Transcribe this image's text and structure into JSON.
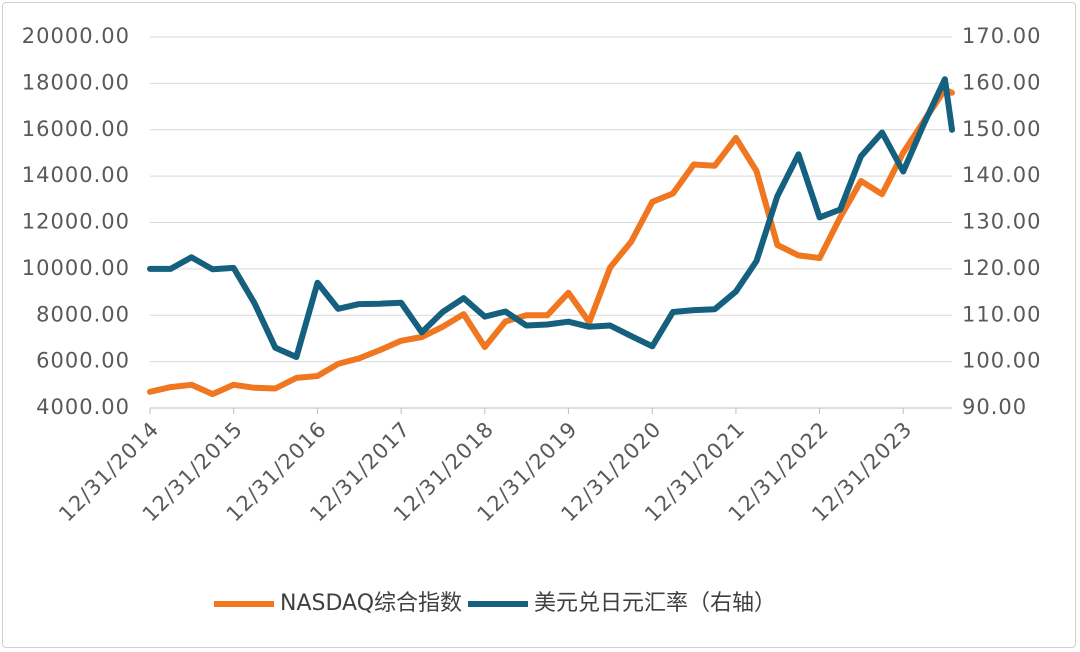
{
  "chart_data": {
    "type": "line",
    "x": [
      "12/31/2014",
      "3/31/2015",
      "6/30/2015",
      "9/30/2015",
      "12/31/2015",
      "3/31/2016",
      "6/30/2016",
      "9/30/2016",
      "12/31/2016",
      "3/31/2017",
      "6/30/2017",
      "9/30/2017",
      "12/31/2017",
      "3/31/2018",
      "6/30/2018",
      "9/30/2018",
      "12/31/2018",
      "3/31/2019",
      "6/30/2019",
      "9/30/2019",
      "12/31/2019",
      "3/31/2020",
      "6/30/2020",
      "9/30/2020",
      "12/31/2020",
      "3/31/2021",
      "6/30/2021",
      "9/30/2021",
      "12/31/2021",
      "3/31/2022",
      "6/30/2022",
      "9/30/2022",
      "12/31/2022",
      "3/31/2023",
      "6/30/2023",
      "9/30/2023",
      "12/31/2023",
      "3/31/2024",
      "6/30/2024",
      "7/31/2024"
    ],
    "series": [
      {
        "name": "NASDAQ综合指数",
        "color": "#f07620",
        "values": [
          4700,
          4900,
          5000,
          4600,
          5000,
          4870,
          4840,
          5300,
          5380,
          5900,
          6140,
          6500,
          6900,
          7060,
          7500,
          8050,
          6630,
          7730,
          8000,
          8000,
          8970,
          7700,
          10060,
          11170,
          12890,
          13250,
          14500,
          14450,
          15650,
          14220,
          11030,
          10580,
          10470,
          12220,
          13790,
          13220,
          15010,
          16380,
          17730,
          17600
        ]
      },
      {
        "name": "美元兑日元汇率（右轴）",
        "color": "#14607e",
        "axis": "y2",
        "values": [
          120,
          120,
          122.5,
          119.9,
          120.2,
          112.6,
          103,
          101,
          117,
          111.4,
          112.4,
          112.5,
          112.7,
          106.3,
          110.7,
          113.7,
          109.7,
          110.8,
          107.8,
          108,
          108.6,
          107.5,
          107.8,
          105.5,
          103.3,
          110.7,
          111.1,
          111.3,
          115.1,
          121.7,
          135.7,
          144.7,
          131.1,
          132.8,
          144.3,
          149.4,
          141,
          151.3,
          160.9,
          150
        ]
      }
    ],
    "xlim": [
      "12/31/2014",
      "7/31/2024"
    ],
    "xticks": [
      "12/31/2014",
      "12/31/2015",
      "12/31/2016",
      "12/31/2017",
      "12/31/2018",
      "12/31/2019",
      "12/31/2020",
      "12/31/2021",
      "12/31/2022",
      "12/31/2023"
    ],
    "ylim": [
      4000,
      20000
    ],
    "yticks": [
      {
        "value": 4000,
        "label": "4000.00"
      },
      {
        "value": 6000,
        "label": "6000.00"
      },
      {
        "value": 8000,
        "label": "8000.00"
      },
      {
        "value": 10000,
        "label": "10000.00"
      },
      {
        "value": 12000,
        "label": "12000.00"
      },
      {
        "value": 14000,
        "label": "14000.00"
      },
      {
        "value": 16000,
        "label": "16000.00"
      },
      {
        "value": 18000,
        "label": "18000.00"
      },
      {
        "value": 20000,
        "label": "20000.00"
      }
    ],
    "y2lim": [
      90,
      170
    ],
    "y2ticks": [
      {
        "value": 90,
        "label": "90.00"
      },
      {
        "value": 100,
        "label": "100.00"
      },
      {
        "value": 110,
        "label": "110.00"
      },
      {
        "value": 120,
        "label": "120.00"
      },
      {
        "value": 130,
        "label": "130.00"
      },
      {
        "value": 140,
        "label": "140.00"
      },
      {
        "value": 150,
        "label": "150.00"
      },
      {
        "value": 160,
        "label": "160.00"
      },
      {
        "value": 170,
        "label": "170.00"
      }
    ],
    "grid": true,
    "legend": "bottom"
  }
}
